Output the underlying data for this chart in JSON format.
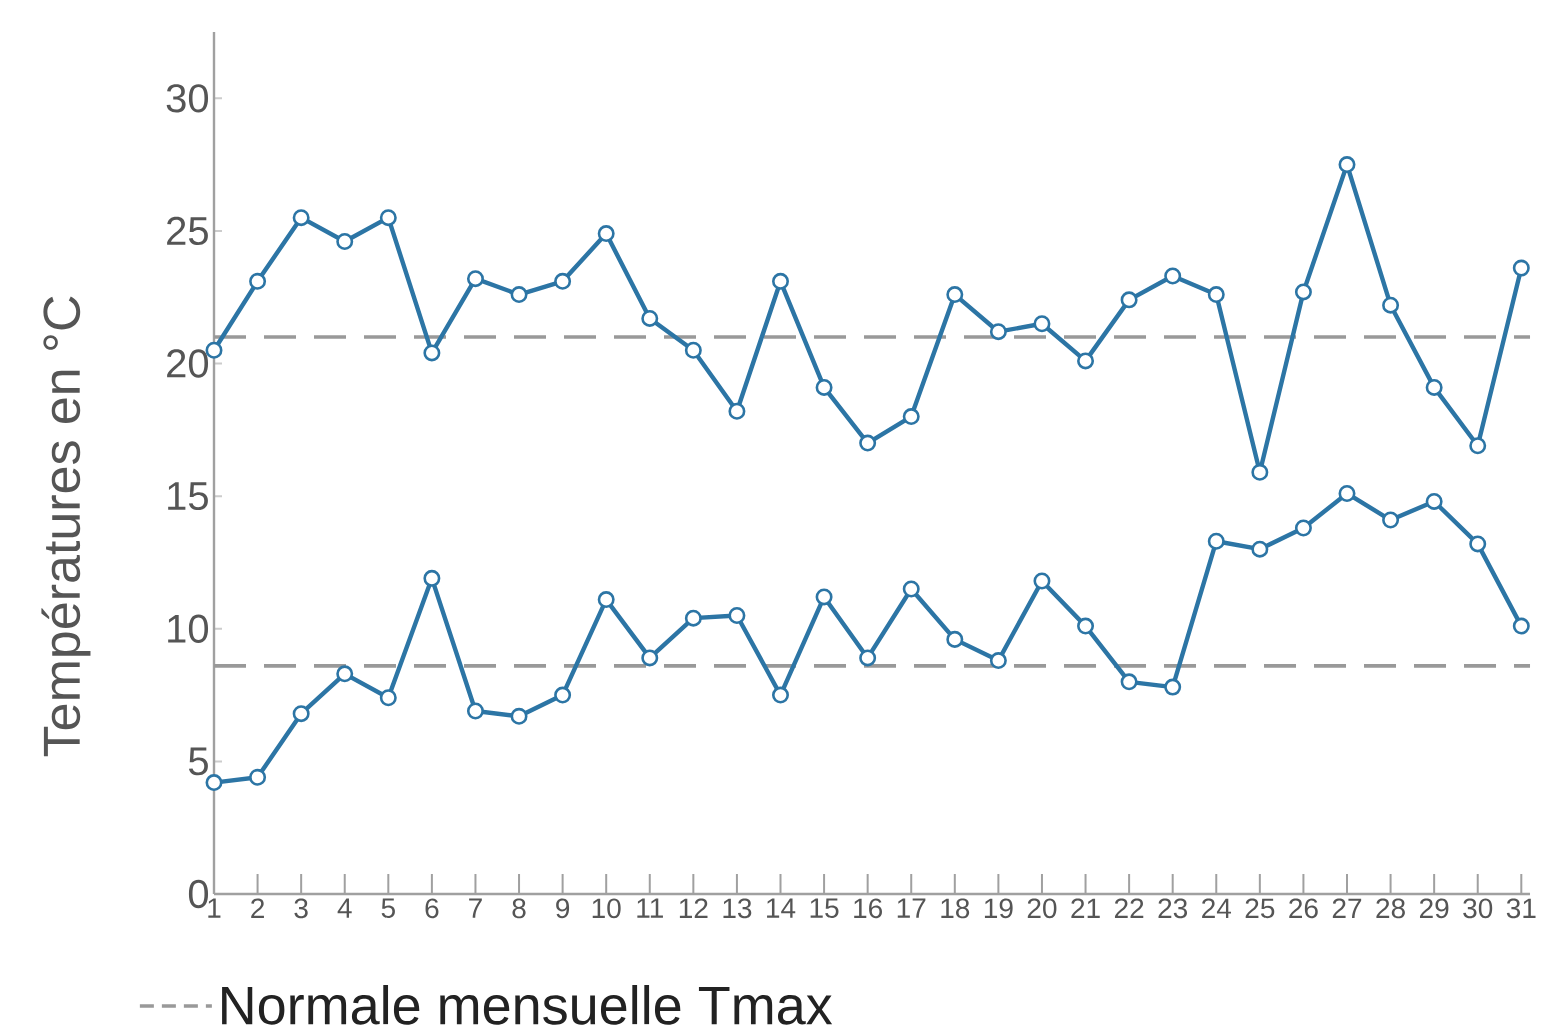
{
  "chart_data": {
    "type": "line",
    "ylabel": "Températures en °C",
    "x": [
      1,
      2,
      3,
      4,
      5,
      6,
      7,
      8,
      9,
      10,
      11,
      12,
      13,
      14,
      15,
      16,
      17,
      18,
      19,
      20,
      21,
      22,
      23,
      24,
      25,
      26,
      27,
      28,
      29,
      30,
      31
    ],
    "xlim": [
      1,
      31.2
    ],
    "xticks": [
      1,
      2,
      3,
      4,
      5,
      6,
      7,
      8,
      9,
      10,
      11,
      12,
      13,
      14,
      15,
      16,
      17,
      18,
      19,
      20,
      21,
      22,
      23,
      24,
      25,
      26,
      27,
      28,
      29,
      30,
      31
    ],
    "ylim": [
      0,
      32.5
    ],
    "yticks": [
      0,
      5,
      10,
      15,
      20,
      25,
      30
    ],
    "marker": "circle",
    "line_style": "solid",
    "legend": "bottom",
    "series": [
      {
        "color": "#2c75a5",
        "values": [
          20.5,
          23.1,
          25.5,
          24.6,
          25.5,
          20.4,
          23.2,
          22.6,
          23.1,
          24.9,
          21.7,
          20.5,
          18.2,
          23.1,
          19.1,
          17.0,
          18.0,
          22.6,
          21.2,
          21.5,
          20.1,
          22.4,
          23.3,
          22.6,
          15.9,
          22.7,
          27.5,
          22.2,
          19.1,
          16.9,
          23.6
        ]
      },
      {
        "color": "#2c75a5",
        "values": [
          4.2,
          4.4,
          6.8,
          8.3,
          7.4,
          11.9,
          6.9,
          6.7,
          7.5,
          11.1,
          8.9,
          10.4,
          10.5,
          7.5,
          11.2,
          8.9,
          11.5,
          9.6,
          8.8,
          11.8,
          10.1,
          8.0,
          7.8,
          13.3,
          13.0,
          13.8,
          15.1,
          14.1,
          14.8,
          13.2,
          10.1
        ]
      }
    ],
    "ref_lines": [
      {
        "axis": "y",
        "value": 21.0,
        "label": "Normale mensuelle Tmax",
        "color": "#999999",
        "line_style": "dashed"
      },
      {
        "axis": "y",
        "value": 8.6,
        "color": "#999999",
        "line_style": "dashed"
      }
    ]
  }
}
